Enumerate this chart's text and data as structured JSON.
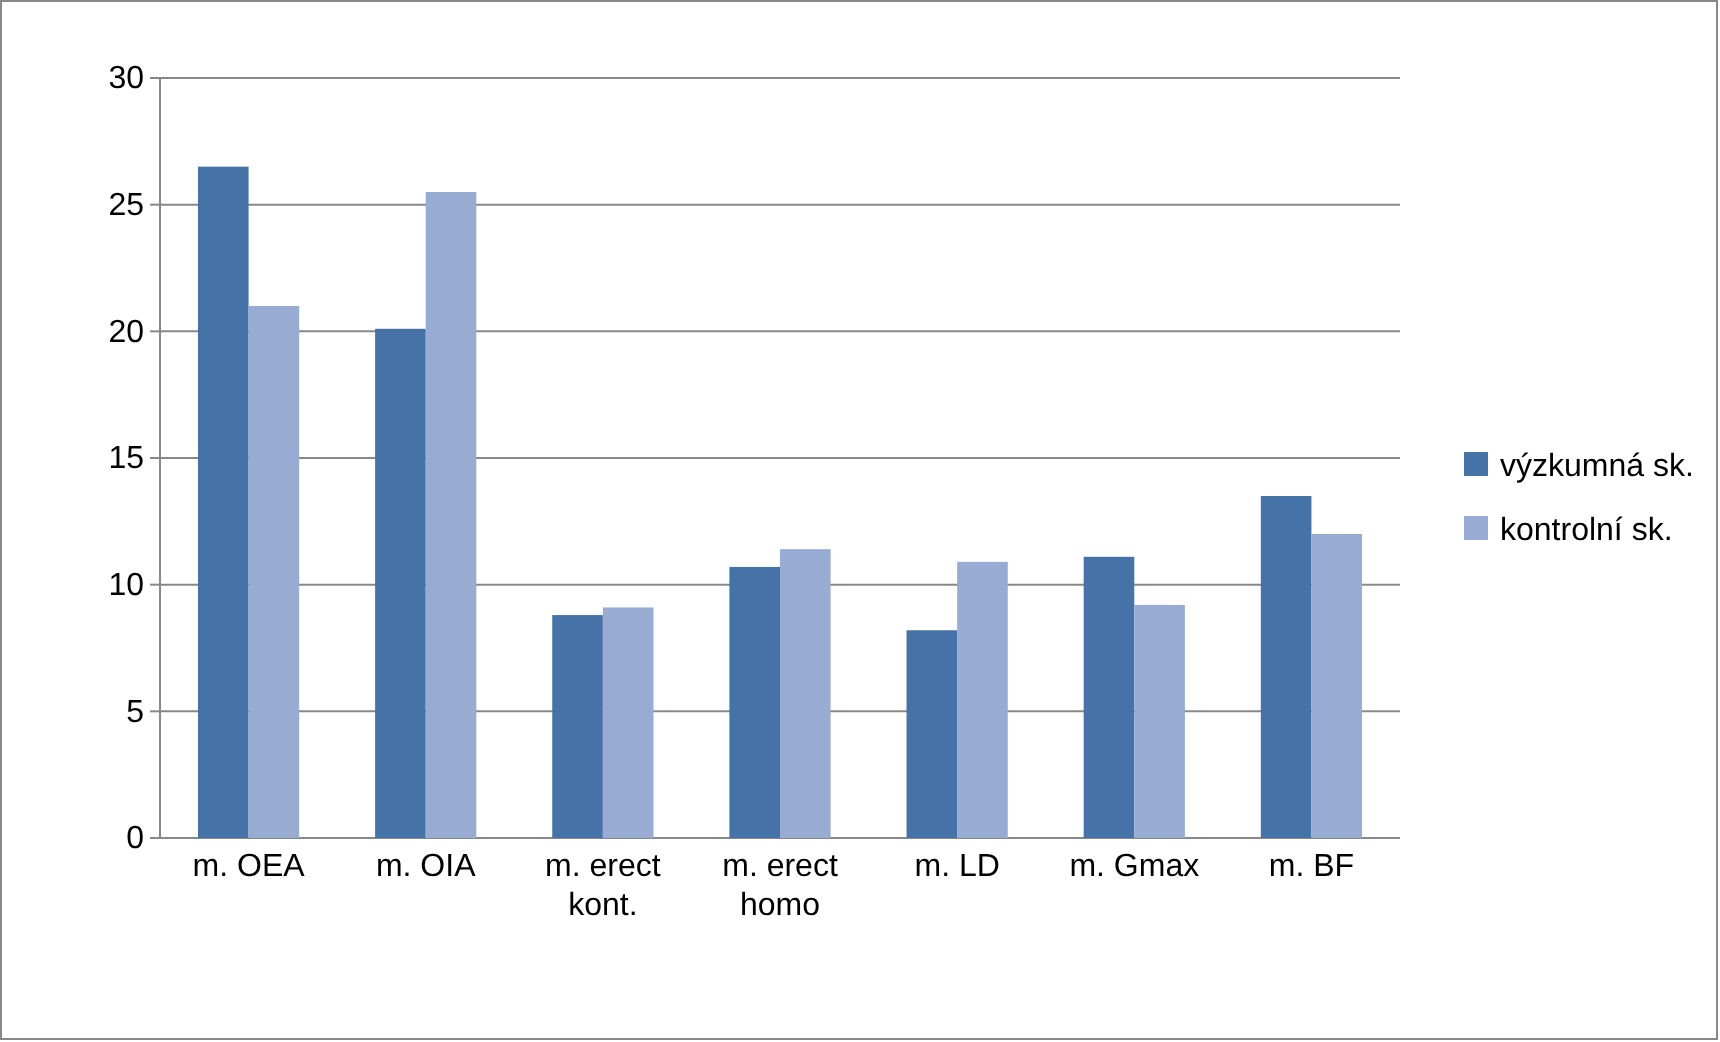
{
  "chart_data": {
    "type": "bar",
    "categories": [
      "m. OEA",
      "m. OIA",
      "m. erect kont.",
      "m. erect homo",
      "m. LD",
      "m. Gmax",
      "m. BF"
    ],
    "series": [
      {
        "name": "výzkumná sk.",
        "color": "#4572a7",
        "values": [
          26.5,
          20.1,
          8.8,
          10.7,
          8.2,
          11.1,
          13.5
        ]
      },
      {
        "name": "kontrolní sk.",
        "color": "#97abd3",
        "values": [
          21,
          25.5,
          9.1,
          11.4,
          10.9,
          9.2,
          12
        ]
      }
    ],
    "ylim": [
      0,
      30
    ],
    "yticks": [
      0,
      5,
      10,
      15,
      20,
      25,
      30
    ],
    "grid": "y",
    "legend": "right"
  }
}
